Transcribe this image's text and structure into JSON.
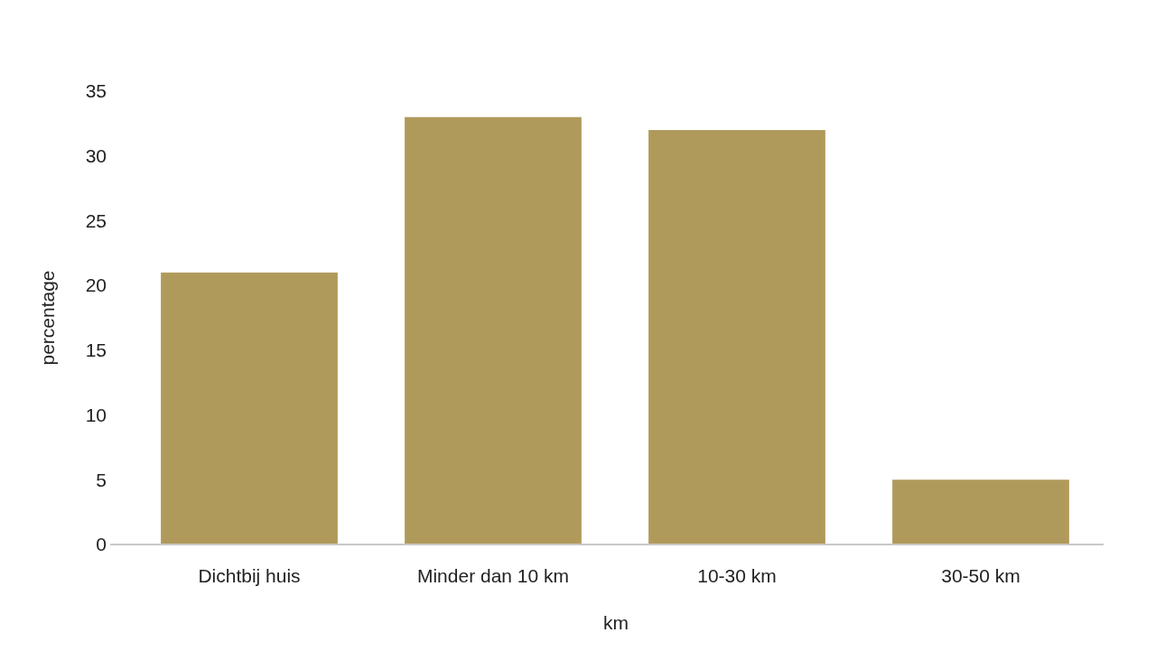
{
  "chart_data": {
    "type": "bar",
    "xlabel": "km",
    "ylabel": "percentage",
    "categories": [
      "Dichtbij huis",
      "Minder dan 10 km",
      "10-30 km",
      "30-50 km"
    ],
    "values": [
      21,
      33,
      32,
      5
    ],
    "color": "#b09a5b",
    "ylim": [
      0,
      35
    ],
    "yticks": [
      0,
      5,
      10,
      15,
      20,
      25,
      30,
      35
    ],
    "grid": false
  }
}
